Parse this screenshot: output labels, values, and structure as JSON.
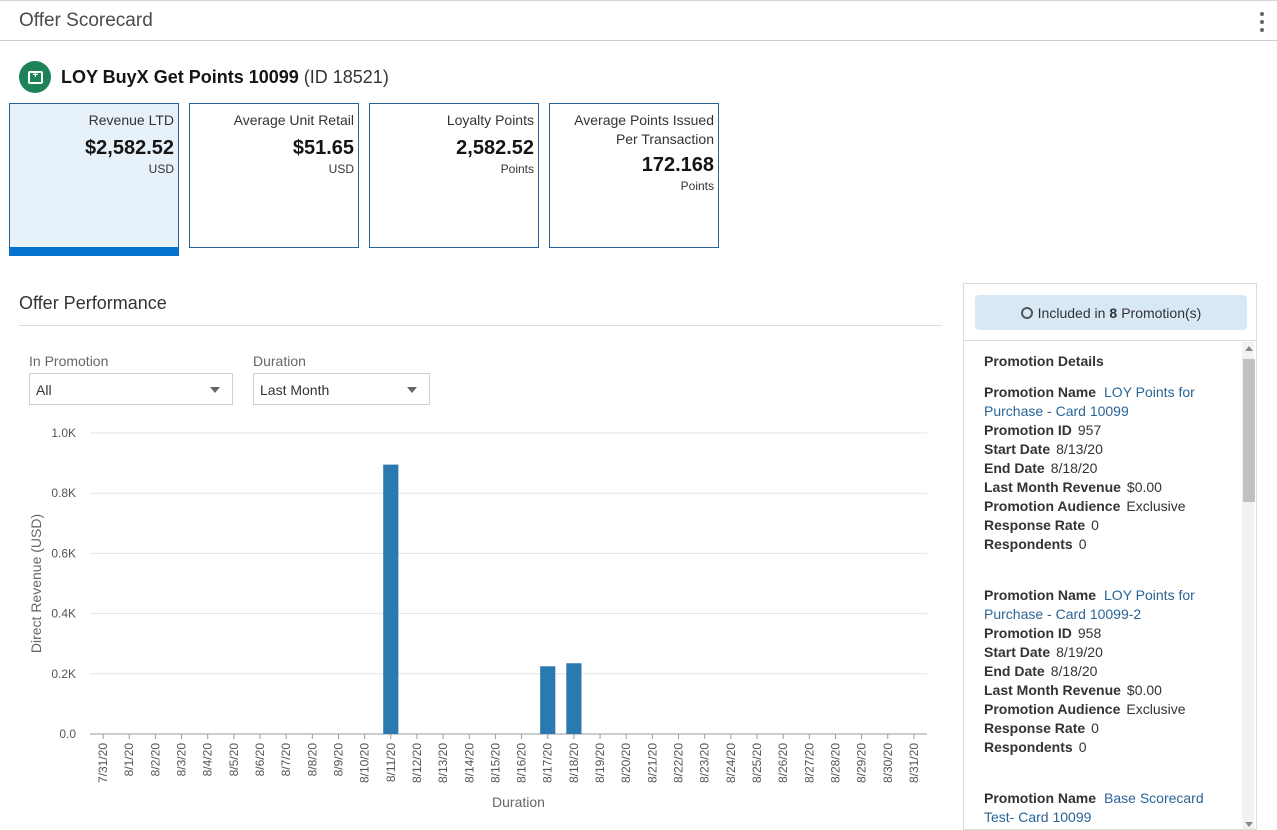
{
  "header": {
    "title": "Offer Scorecard",
    "menu_icon": "kebab-menu-icon"
  },
  "offer": {
    "icon": "offer-card-icon",
    "name": "LOY BuyX Get Points 10099",
    "id_text": "(ID 18521)",
    "icon_color": "#1d8356"
  },
  "tiles": [
    {
      "label": "Revenue LTD",
      "value": "$2,582.52",
      "unit": "USD"
    },
    {
      "label": "Average Unit Retail",
      "value": "$51.65",
      "unit": "USD"
    },
    {
      "label": "Loyalty Points",
      "value": "2,582.52",
      "unit": "Points"
    },
    {
      "label": "Average Points Issued Per Transaction",
      "value": "172.168",
      "unit": "Points"
    }
  ],
  "performance": {
    "title": "Offer Performance",
    "filters": {
      "promotion_label": "In Promotion",
      "promotion_value": "All",
      "duration_label": "Duration",
      "duration_value": "Last Month"
    }
  },
  "chart_data": {
    "type": "bar",
    "title": "",
    "xlabel": "Duration",
    "ylabel": "Direct Revenue (USD)",
    "ylim": [
      0,
      1000
    ],
    "yticks": [
      "0.0",
      "0.2K",
      "0.4K",
      "0.6K",
      "0.8K",
      "1.0K"
    ],
    "grid": true,
    "bar_color": "#2a79b0",
    "categories": [
      "7/31/20",
      "8/1/20",
      "8/2/20",
      "8/3/20",
      "8/4/20",
      "8/5/20",
      "8/6/20",
      "8/7/20",
      "8/8/20",
      "8/9/20",
      "8/10/20",
      "8/11/20",
      "8/12/20",
      "8/13/20",
      "8/14/20",
      "8/15/20",
      "8/16/20",
      "8/17/20",
      "8/18/20",
      "8/19/20",
      "8/20/20",
      "8/21/20",
      "8/22/20",
      "8/23/20",
      "8/24/20",
      "8/25/20",
      "8/26/20",
      "8/27/20",
      "8/28/20",
      "8/29/20",
      "8/30/20",
      "8/31/20"
    ],
    "values": [
      0,
      0,
      0,
      0,
      0,
      0,
      0,
      0,
      0,
      0,
      0,
      895,
      0,
      0,
      0,
      0,
      0,
      225,
      235,
      0,
      0,
      0,
      0,
      0,
      0,
      0,
      0,
      0,
      0,
      0,
      0,
      0
    ]
  },
  "sidebar": {
    "included_prefix": "Included in",
    "included_count": "8",
    "included_suffix": "Promotion(s)",
    "details_title": "Promotion Details",
    "labels": {
      "name": "Promotion Name",
      "id": "Promotion ID",
      "start": "Start Date",
      "end": "End Date",
      "revenue": "Last Month Revenue",
      "audience": "Promotion Audience",
      "response": "Response Rate",
      "respondents": "Respondents"
    },
    "promotions": [
      {
        "name_line1": "LOY Points for",
        "name_line2": "Purchase - Card 10099",
        "id": "957",
        "start": "8/13/20",
        "end": "8/18/20",
        "revenue": "$0.00",
        "audience": "Exclusive",
        "response": "0",
        "respondents": "0"
      },
      {
        "name_line1": "LOY Points for",
        "name_line2": "Purchase - Card 10099-2",
        "id": "958",
        "start": "8/19/20",
        "end": "8/18/20",
        "revenue": "$0.00",
        "audience": "Exclusive",
        "response": "0",
        "respondents": "0"
      },
      {
        "name_line1": "Base Scorecard",
        "name_line2": "Test- Card 10099"
      }
    ]
  }
}
